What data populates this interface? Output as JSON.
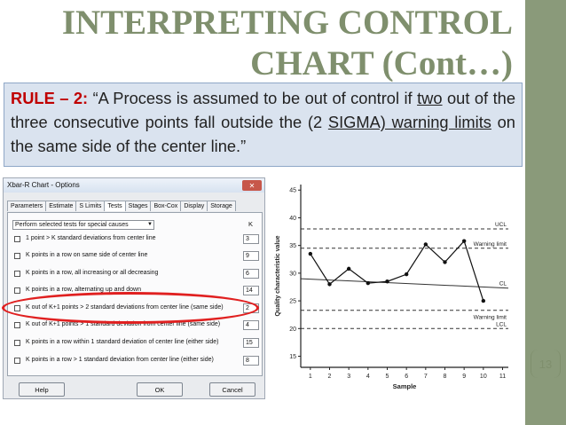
{
  "slide": {
    "title_line1": "INTERPRETING CONTROL",
    "title_line2": "CHART (Cont…)",
    "page_number": "13",
    "colors": {
      "title": "#7f8f6d",
      "rule_head": "#c00000",
      "box_bg": "#dae3ef",
      "sidebar": "#8a9a7a",
      "highlight": "#e02020"
    }
  },
  "rule": {
    "head": "RULE – 2:",
    "t1": " “A Process is assumed to be out of control if ",
    "u1": "two",
    "t2": " out of the three consecutive points fall outside the (2 ",
    "u2": "SIGMA) warning limits",
    "t3": " on the same side of the center line.”"
  },
  "dialog": {
    "title": "Xbar-R Chart - Options",
    "close_label": "✕",
    "tabs": [
      "Parameters",
      "Estimate",
      "S Limits",
      "Tests",
      "Stages",
      "Box-Cox",
      "Display",
      "Storage"
    ],
    "active_tab": "Tests",
    "dropdown_value": "Perform selected tests for special causes",
    "k_header": "K",
    "tests": [
      {
        "label": "1 point > K standard deviations from center line",
        "k": "3"
      },
      {
        "label": "K points in a row on same side of center line",
        "k": "9"
      },
      {
        "label": "K points in a row, all increasing or all decreasing",
        "k": "6"
      },
      {
        "label": "K points in a row, alternating up and down",
        "k": "14"
      },
      {
        "label": "K out of K+1 points > 2 standard deviations from center line (same side)",
        "k": "2"
      },
      {
        "label": "K out of K+1 points > 1 standard deviation from center line (same side)",
        "k": "4"
      },
      {
        "label": "K points in a row within 1 standard deviation of center line (either side)",
        "k": "15"
      },
      {
        "label": "K points in a row > 1 standard deviation from center line (either side)",
        "k": "8"
      }
    ],
    "buttons": {
      "help": "Help",
      "ok": "OK",
      "cancel": "Cancel"
    }
  },
  "chart_data": {
    "type": "line",
    "title": "",
    "xlabel": "Sample",
    "ylabel": "Quality characteristic value",
    "xlim": [
      0.5,
      11.3
    ],
    "ylim": [
      13,
      46
    ],
    "x_ticks": [
      "1",
      "2",
      "3",
      "4",
      "5",
      "6",
      "7",
      "8",
      "9",
      "10",
      "11"
    ],
    "y_ticks": [
      "15",
      "20",
      "25",
      "30",
      "35",
      "40",
      "45"
    ],
    "series": [
      {
        "x": [
          1,
          2,
          3,
          4,
          5,
          6,
          7,
          8,
          9,
          10
        ],
        "values": [
          33.5,
          28.0,
          30.8,
          28.2,
          28.5,
          29.8,
          35.2,
          32.0,
          35.8,
          25.0
        ]
      }
    ],
    "reference_lines": [
      {
        "label": "UCL",
        "value": 38,
        "style": "dashed"
      },
      {
        "label": "Warning limit",
        "value": 34.5,
        "style": "dashed"
      },
      {
        "label": "CL",
        "value": 29,
        "style": "solid-sloped",
        "end_value": 27.3
      },
      {
        "label": "Warning limit",
        "value": 23.3,
        "style": "dashed"
      },
      {
        "label": "LCL",
        "value": 20,
        "style": "dashed"
      }
    ]
  }
}
